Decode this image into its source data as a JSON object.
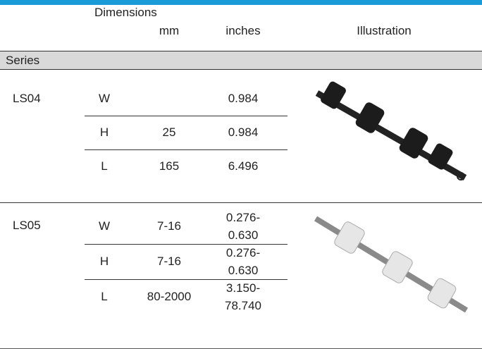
{
  "header": {
    "dimensions": "Dimensions",
    "mm": "mm",
    "inches": "inches",
    "illustration": "Illustration"
  },
  "section": "Series",
  "groups": [
    {
      "series": "LS04",
      "rows": [
        {
          "dim": "W",
          "mm": null,
          "inches": [
            "0.984"
          ]
        },
        {
          "dim": "H",
          "mm": "25",
          "inches": [
            "0.984"
          ]
        },
        {
          "dim": "L",
          "mm": "165",
          "inches": [
            "6.496"
          ]
        }
      ]
    },
    {
      "series": "LS05",
      "rows": [
        {
          "dim": "W",
          "mm": "7-16",
          "inches": [
            "0.276-",
            "0.630"
          ]
        },
        {
          "dim": "H",
          "mm": "7-16",
          "inches": [
            "0.276-",
            "0.630"
          ]
        },
        {
          "dim": "L",
          "mm": "80-2000",
          "inches": [
            "3.150-",
            "78.740"
          ]
        }
      ]
    }
  ]
}
